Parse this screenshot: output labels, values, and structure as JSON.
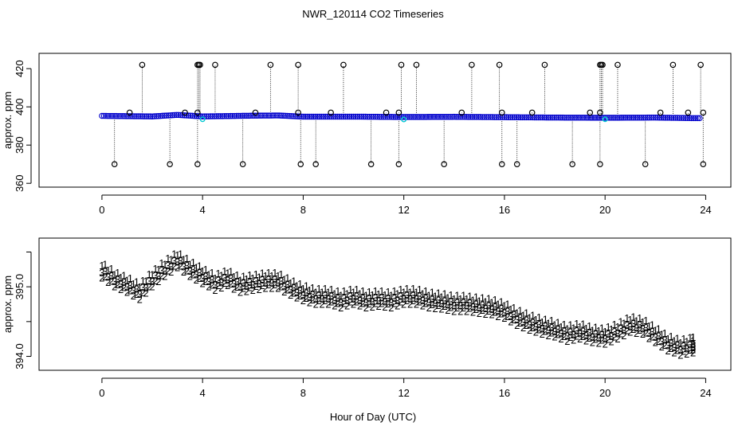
{
  "chart_data": {
    "title": "NWR_120114  CO2 Timeseries",
    "xlabel": "Hour of Day (UTC)",
    "panels": [
      {
        "id": "top",
        "type": "scatter",
        "ylabel": "approx. ppm",
        "xlim": [
          -2.5,
          25
        ],
        "ylim": [
          358,
          428
        ],
        "xticks": [
          0,
          4,
          8,
          12,
          16,
          20,
          24
        ],
        "yticks": [
          360,
          380,
          400,
          420
        ],
        "colors": {
          "markers": "#000000",
          "baseline": "#0000cc",
          "low": "#00c8d2",
          "spike_line": "#000000"
        },
        "baseline": [
          {
            "x": 0.0,
            "y": 395.3
          },
          {
            "x": 2.0,
            "y": 395.0
          },
          {
            "x": 3.0,
            "y": 395.8
          },
          {
            "x": 4.0,
            "y": 395.0
          },
          {
            "x": 6.0,
            "y": 395.4
          },
          {
            "x": 7.0,
            "y": 395.5
          },
          {
            "x": 8.0,
            "y": 394.9
          },
          {
            "x": 10.0,
            "y": 394.9
          },
          {
            "x": 12.0,
            "y": 394.7
          },
          {
            "x": 14.0,
            "y": 394.8
          },
          {
            "x": 16.0,
            "y": 394.6
          },
          {
            "x": 18.0,
            "y": 394.4
          },
          {
            "x": 20.0,
            "y": 394.3
          },
          {
            "x": 22.0,
            "y": 394.4
          },
          {
            "x": 23.5,
            "y": 394.1
          }
        ],
        "spikes_high": [
          1.6,
          3.8,
          3.85,
          3.9,
          4.5,
          6.7,
          7.8,
          9.6,
          11.9,
          12.5,
          14.7,
          15.8,
          17.6,
          19.8,
          19.85,
          19.9,
          20.5,
          22.7,
          23.8
        ],
        "spikes_low": [
          0.5,
          2.7,
          3.8,
          5.6,
          7.9,
          8.5,
          10.7,
          11.8,
          13.6,
          15.9,
          16.5,
          18.7,
          19.8,
          21.6,
          23.9
        ],
        "spikes_mid": [
          1.1,
          3.3,
          3.8,
          6.1,
          7.8,
          9.1,
          11.3,
          11.8,
          14.3,
          15.9,
          17.1,
          19.4,
          19.8,
          22.2,
          23.3,
          23.9
        ],
        "low_points": [
          {
            "x": 4.0,
            "y": 393.5
          },
          {
            "x": 12.0,
            "y": 393.4
          },
          {
            "x": 20.0,
            "y": 393.5
          }
        ],
        "high_value": 422,
        "low_value": 370,
        "mid_value": 397
      },
      {
        "id": "bottom",
        "type": "scatter",
        "ylabel": "approx. ppm",
        "xlim": [
          -2.5,
          25
        ],
        "ylim": [
          393.8,
          395.7
        ],
        "xticks": [
          0,
          4,
          8,
          12,
          16,
          20,
          24
        ],
        "yticks": [
          394.0,
          394.5,
          395.0,
          395.5
        ],
        "ytick_labels": [
          "394.0",
          "",
          "395.0",
          ""
        ],
        "series": [
          {
            "name": "1",
            "color": "#e00000",
            "offset": 0.2,
            "points": [
              {
                "x": 0.0,
                "y": 395.23
              },
              {
                "x": 0.5,
                "y": 395.1
              },
              {
                "x": 1.0,
                "y": 395.02
              },
              {
                "x": 1.5,
                "y": 394.92
              },
              {
                "x": 2.0,
                "y": 395.1
              },
              {
                "x": 2.5,
                "y": 395.25
              },
              {
                "x": 3.0,
                "y": 395.38
              },
              {
                "x": 3.5,
                "y": 395.25
              },
              {
                "x": 4.0,
                "y": 395.15
              },
              {
                "x": 4.5,
                "y": 395.05
              },
              {
                "x": 5.0,
                "y": 395.12
              },
              {
                "x": 5.5,
                "y": 395.02
              },
              {
                "x": 6.0,
                "y": 395.05
              },
              {
                "x": 6.5,
                "y": 395.08
              },
              {
                "x": 7.0,
                "y": 395.08
              },
              {
                "x": 7.5,
                "y": 394.98
              },
              {
                "x": 8.0,
                "y": 394.9
              },
              {
                "x": 8.5,
                "y": 394.85
              },
              {
                "x": 9.0,
                "y": 394.85
              },
              {
                "x": 9.5,
                "y": 394.8
              },
              {
                "x": 10.0,
                "y": 394.85
              },
              {
                "x": 10.5,
                "y": 394.8
              },
              {
                "x": 11.0,
                "y": 394.82
              },
              {
                "x": 11.5,
                "y": 394.8
              },
              {
                "x": 12.0,
                "y": 394.85
              },
              {
                "x": 12.5,
                "y": 394.85
              },
              {
                "x": 13.0,
                "y": 394.8
              },
              {
                "x": 13.5,
                "y": 394.78
              },
              {
                "x": 14.0,
                "y": 394.75
              },
              {
                "x": 14.5,
                "y": 394.75
              },
              {
                "x": 15.0,
                "y": 394.72
              },
              {
                "x": 15.5,
                "y": 394.7
              },
              {
                "x": 16.0,
                "y": 394.65
              },
              {
                "x": 16.5,
                "y": 394.55
              },
              {
                "x": 17.0,
                "y": 394.48
              },
              {
                "x": 17.5,
                "y": 394.42
              },
              {
                "x": 18.0,
                "y": 394.38
              },
              {
                "x": 18.5,
                "y": 394.32
              },
              {
                "x": 19.0,
                "y": 394.35
              },
              {
                "x": 19.5,
                "y": 394.3
              },
              {
                "x": 20.0,
                "y": 394.28
              },
              {
                "x": 20.5,
                "y": 394.35
              },
              {
                "x": 21.0,
                "y": 394.45
              },
              {
                "x": 21.5,
                "y": 394.42
              },
              {
                "x": 22.0,
                "y": 394.3
              },
              {
                "x": 22.5,
                "y": 394.18
              },
              {
                "x": 23.0,
                "y": 394.12
              },
              {
                "x": 23.5,
                "y": 394.15
              }
            ]
          },
          {
            "name": "3",
            "color": "#0000dd",
            "offset": 0.0,
            "points": [
              {
                "x": 0.0,
                "y": 395.23
              },
              {
                "x": 0.5,
                "y": 395.1
              },
              {
                "x": 1.0,
                "y": 395.02
              },
              {
                "x": 1.5,
                "y": 394.92
              },
              {
                "x": 2.0,
                "y": 395.1
              },
              {
                "x": 2.5,
                "y": 395.25
              },
              {
                "x": 3.0,
                "y": 395.38
              },
              {
                "x": 3.5,
                "y": 395.25
              },
              {
                "x": 4.0,
                "y": 395.15
              },
              {
                "x": 4.5,
                "y": 395.05
              },
              {
                "x": 5.0,
                "y": 395.12
              },
              {
                "x": 5.5,
                "y": 395.02
              },
              {
                "x": 6.0,
                "y": 395.05
              },
              {
                "x": 6.5,
                "y": 395.08
              },
              {
                "x": 7.0,
                "y": 395.08
              },
              {
                "x": 7.5,
                "y": 394.98
              },
              {
                "x": 8.0,
                "y": 394.9
              },
              {
                "x": 8.5,
                "y": 394.85
              },
              {
                "x": 9.0,
                "y": 394.85
              },
              {
                "x": 9.5,
                "y": 394.8
              },
              {
                "x": 10.0,
                "y": 394.85
              },
              {
                "x": 10.5,
                "y": 394.8
              },
              {
                "x": 11.0,
                "y": 394.82
              },
              {
                "x": 11.5,
                "y": 394.8
              },
              {
                "x": 12.0,
                "y": 394.85
              },
              {
                "x": 12.5,
                "y": 394.85
              },
              {
                "x": 13.0,
                "y": 394.8
              },
              {
                "x": 13.5,
                "y": 394.78
              },
              {
                "x": 14.0,
                "y": 394.75
              },
              {
                "x": 14.5,
                "y": 394.75
              },
              {
                "x": 15.0,
                "y": 394.72
              },
              {
                "x": 15.5,
                "y": 394.7
              },
              {
                "x": 16.0,
                "y": 394.65
              },
              {
                "x": 16.5,
                "y": 394.55
              },
              {
                "x": 17.0,
                "y": 394.48
              },
              {
                "x": 17.5,
                "y": 394.42
              },
              {
                "x": 18.0,
                "y": 394.38
              },
              {
                "x": 18.5,
                "y": 394.32
              },
              {
                "x": 19.0,
                "y": 394.35
              },
              {
                "x": 19.5,
                "y": 394.3
              },
              {
                "x": 20.0,
                "y": 394.28
              },
              {
                "x": 20.5,
                "y": 394.35
              },
              {
                "x": 21.0,
                "y": 394.45
              },
              {
                "x": 21.5,
                "y": 394.42
              },
              {
                "x": 22.0,
                "y": 394.3
              },
              {
                "x": 22.5,
                "y": 394.18
              },
              {
                "x": 23.0,
                "y": 394.12
              },
              {
                "x": 23.5,
                "y": 394.15
              }
            ]
          },
          {
            "name": "2",
            "color": "#00bb00",
            "offset": -0.15,
            "points": [
              {
                "x": 0.0,
                "y": 395.23
              },
              {
                "x": 0.5,
                "y": 395.1
              },
              {
                "x": 1.0,
                "y": 395.02
              },
              {
                "x": 1.5,
                "y": 394.92
              },
              {
                "x": 2.0,
                "y": 395.1
              },
              {
                "x": 2.5,
                "y": 395.25
              },
              {
                "x": 3.0,
                "y": 395.38
              },
              {
                "x": 3.5,
                "y": 395.25
              },
              {
                "x": 4.0,
                "y": 395.15
              },
              {
                "x": 4.5,
                "y": 395.05
              },
              {
                "x": 5.0,
                "y": 395.12
              },
              {
                "x": 5.5,
                "y": 395.02
              },
              {
                "x": 6.0,
                "y": 395.05
              },
              {
                "x": 6.5,
                "y": 395.08
              },
              {
                "x": 7.0,
                "y": 395.08
              },
              {
                "x": 7.5,
                "y": 394.98
              },
              {
                "x": 8.0,
                "y": 394.9
              },
              {
                "x": 8.5,
                "y": 394.85
              },
              {
                "x": 9.0,
                "y": 394.85
              },
              {
                "x": 9.5,
                "y": 394.8
              },
              {
                "x": 10.0,
                "y": 394.85
              },
              {
                "x": 10.5,
                "y": 394.8
              },
              {
                "x": 11.0,
                "y": 394.82
              },
              {
                "x": 11.5,
                "y": 394.8
              },
              {
                "x": 12.0,
                "y": 394.85
              },
              {
                "x": 12.5,
                "y": 394.85
              },
              {
                "x": 13.0,
                "y": 394.8
              },
              {
                "x": 13.5,
                "y": 394.78
              },
              {
                "x": 14.0,
                "y": 394.75
              },
              {
                "x": 14.5,
                "y": 394.75
              },
              {
                "x": 15.0,
                "y": 394.72
              },
              {
                "x": 15.5,
                "y": 394.7
              },
              {
                "x": 16.0,
                "y": 394.65
              },
              {
                "x": 16.5,
                "y": 394.55
              },
              {
                "x": 17.0,
                "y": 394.48
              },
              {
                "x": 17.5,
                "y": 394.42
              },
              {
                "x": 18.0,
                "y": 394.38
              },
              {
                "x": 18.5,
                "y": 394.32
              },
              {
                "x": 19.0,
                "y": 394.35
              },
              {
                "x": 19.5,
                "y": 394.3
              },
              {
                "x": 20.0,
                "y": 394.28
              },
              {
                "x": 20.5,
                "y": 394.35
              },
              {
                "x": 21.0,
                "y": 394.45
              },
              {
                "x": 21.5,
                "y": 394.42
              },
              {
                "x": 22.0,
                "y": 394.3
              },
              {
                "x": 22.5,
                "y": 394.18
              },
              {
                "x": 23.0,
                "y": 394.12
              },
              {
                "x": 23.5,
                "y": 394.15
              }
            ]
          }
        ]
      }
    ]
  }
}
